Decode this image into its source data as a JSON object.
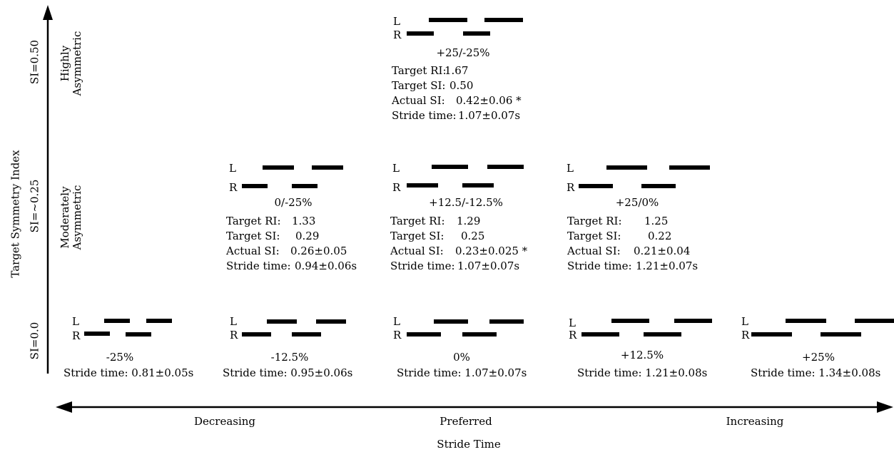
{
  "axes": {
    "y_title": "Target Symmetry Index",
    "x_title": "Stride Time",
    "y_levels": [
      {
        "label": "SI=0.50",
        "group": "Highly\nAsymmetric"
      },
      {
        "label": "SI=~0.25",
        "group": "Moderately\nAsymmetric"
      },
      {
        "label": "SI=0.0",
        "group": ""
      }
    ],
    "x_regions": [
      "Decreasing",
      "Preferred",
      "Increasing"
    ]
  },
  "labels": {
    "left": "L",
    "right": "R"
  },
  "stat_labels": {
    "target_ri": "Target RI:",
    "target_si": "Target SI:",
    "actual_si": "Actual SI:",
    "stride_time": "Stride time:"
  },
  "conditions": {
    "c1": {
      "name": "+25/-25%",
      "target_ri": "1.67",
      "target_si": "0.50",
      "actual_si": "0.42±0.06 *",
      "stride_time": "1.07±0.07s"
    },
    "c2": {
      "name": "0/-25%",
      "target_ri": "1.33",
      "target_si": "0.29",
      "actual_si": "0.26±0.05",
      "stride_time": "0.94±0.06s"
    },
    "c3": {
      "name": "+12.5/-12.5%",
      "target_ri": "1.29",
      "target_si": "0.25",
      "actual_si": "0.23±0.025 *",
      "stride_time": "1.07±0.07s"
    },
    "c4": {
      "name": "+25/0%",
      "target_ri": "1.25",
      "target_si": "0.22",
      "actual_si": "0.21±0.04",
      "stride_time": "1.21±0.07s"
    },
    "c5": {
      "name": "-25%",
      "stride_time": "0.81±0.05s"
    },
    "c6": {
      "name": "-12.5%",
      "stride_time": "0.95±0.06s"
    },
    "c7": {
      "name": "0%",
      "stride_time": "1.07±0.07s"
    },
    "c8": {
      "name": "+12.5%",
      "stride_time": "1.21±0.08s"
    },
    "c9": {
      "name": "+25%",
      "stride_time": "1.34±0.08s"
    }
  }
}
